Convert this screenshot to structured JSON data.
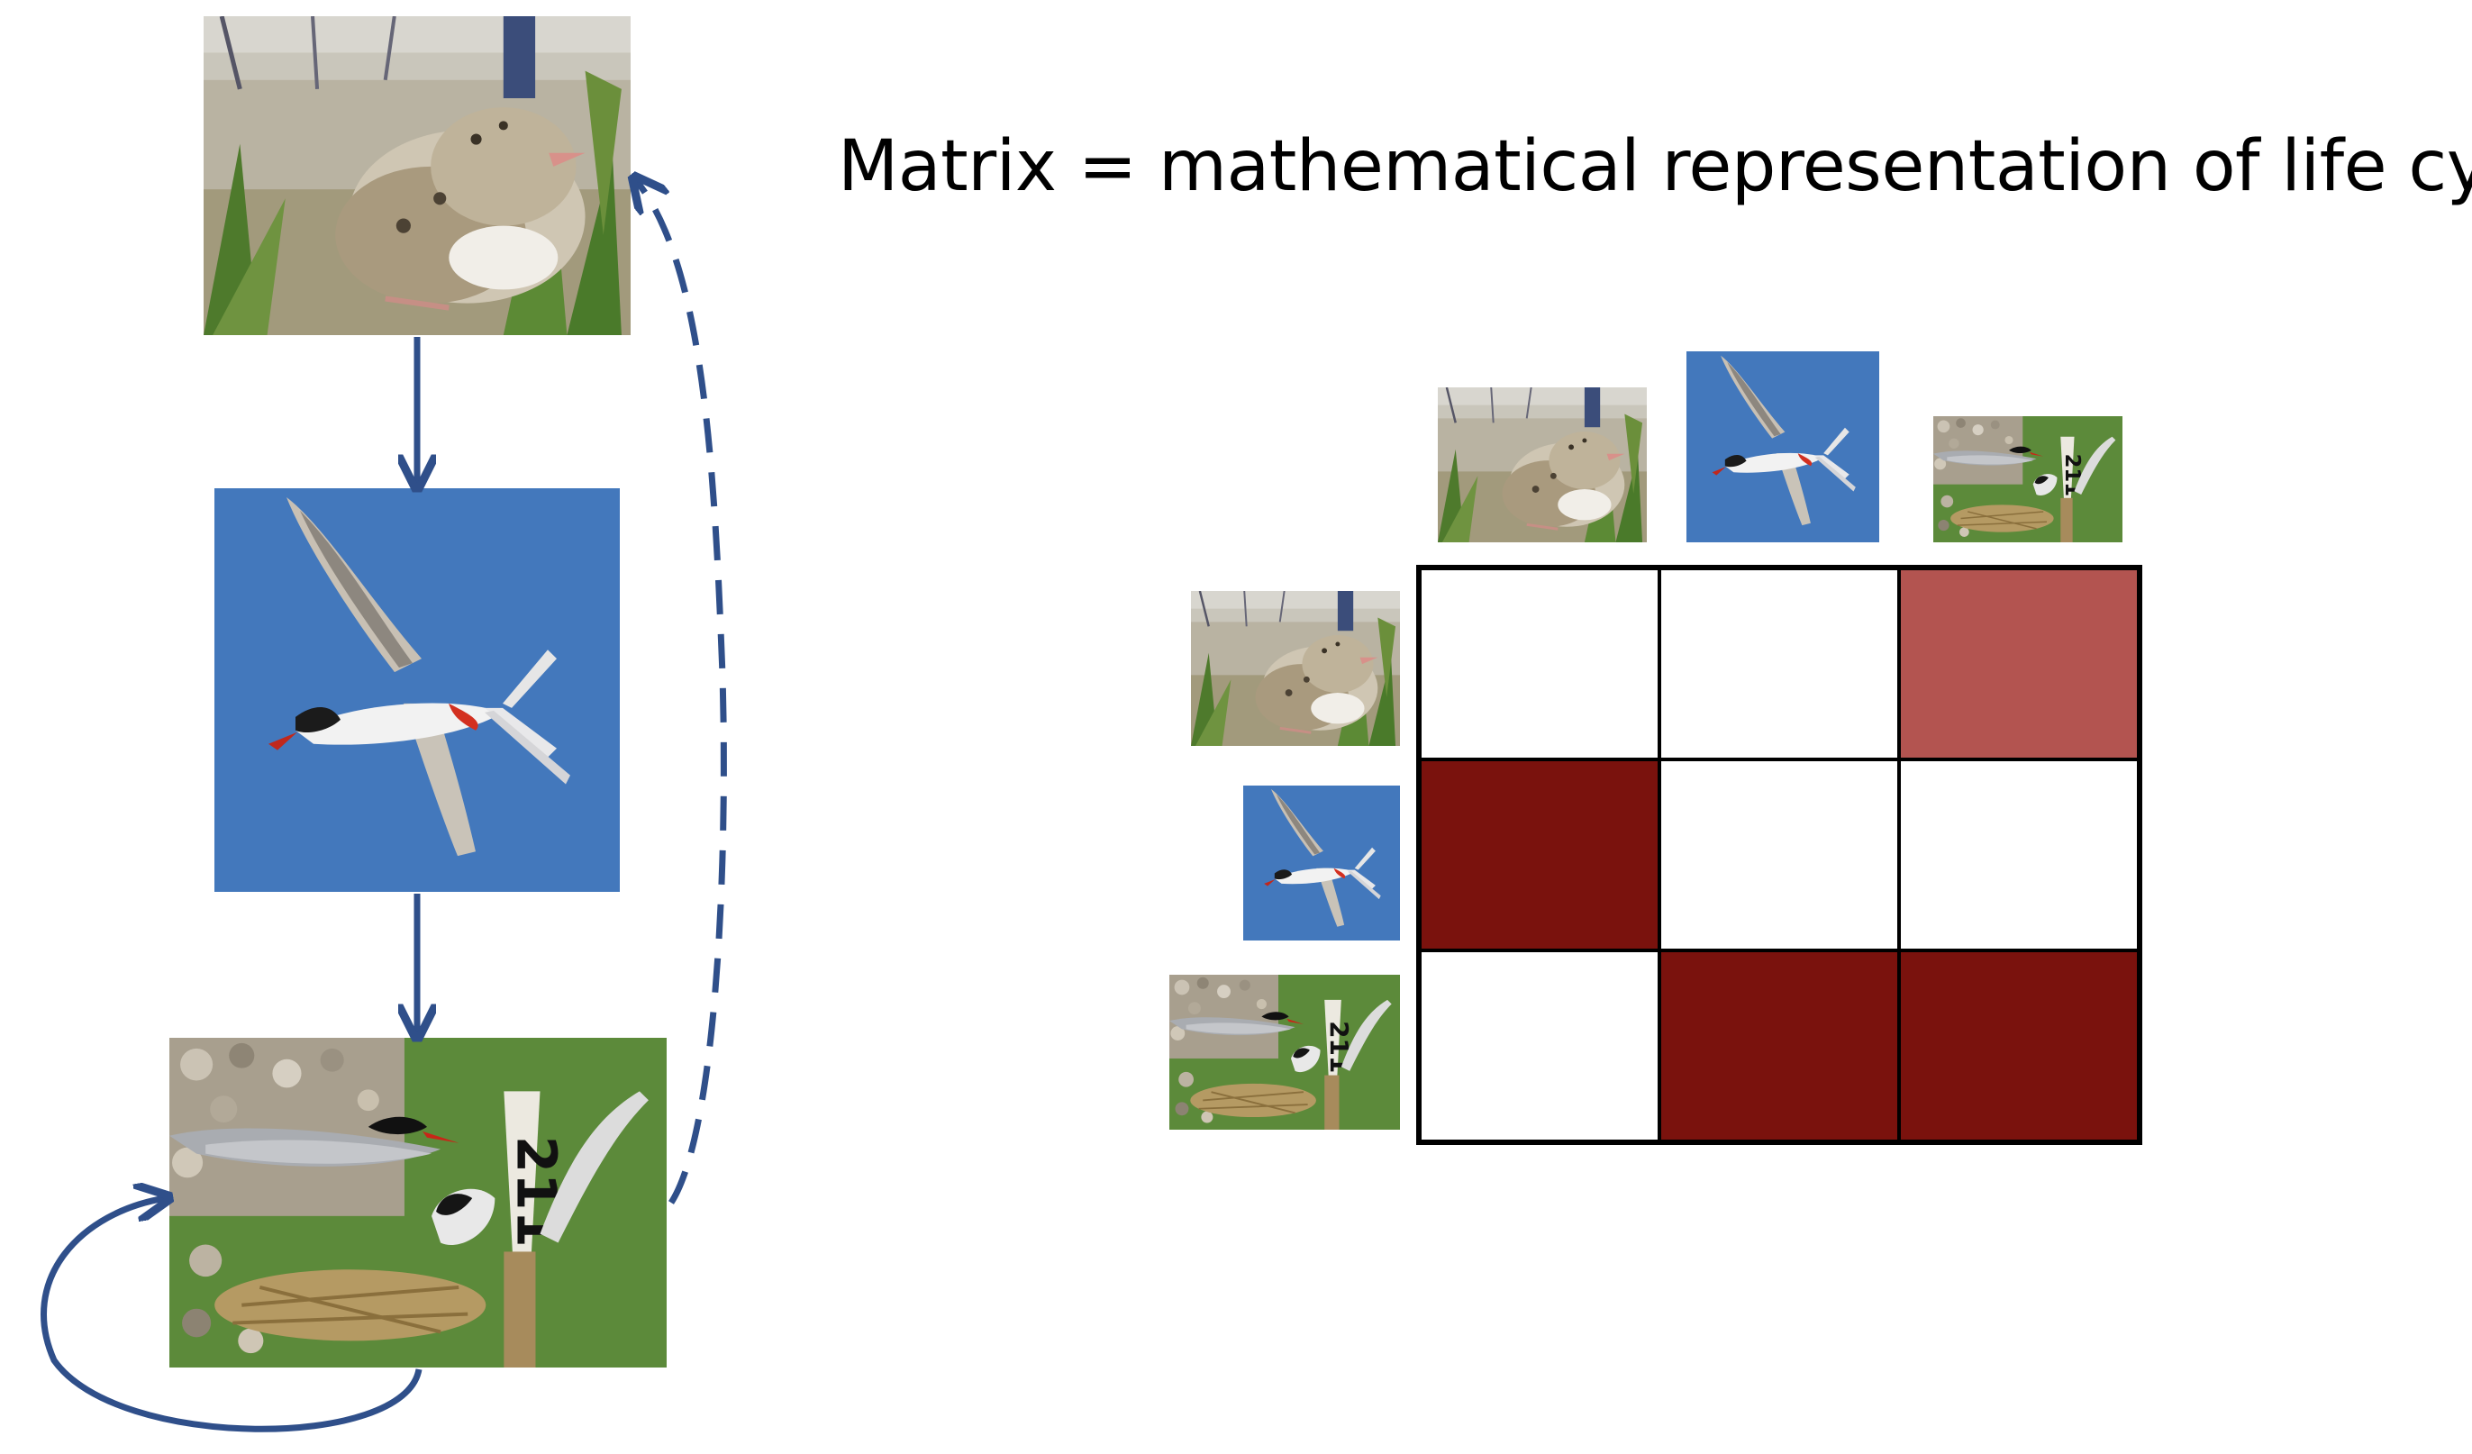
{
  "title": "Matrix = mathematical representation of life cycle",
  "stages": [
    {
      "id": "chick",
      "icon": "tern-chick-photo"
    },
    {
      "id": "juvenile",
      "icon": "flying-tern-photo"
    },
    {
      "id": "adult",
      "icon": "nesting-tern-photo"
    }
  ],
  "matrix": {
    "rows": 3,
    "cols": 3,
    "cells": [
      [
        "empty",
        "empty",
        "light"
      ],
      [
        "dark",
        "empty",
        "empty"
      ],
      [
        "empty",
        "dark",
        "dark"
      ]
    ]
  },
  "colors": {
    "arrow": "#2f4f8a",
    "dark": "#7a120d",
    "light": "#b35450",
    "empty": "#ffffff",
    "grid": "#000000"
  }
}
